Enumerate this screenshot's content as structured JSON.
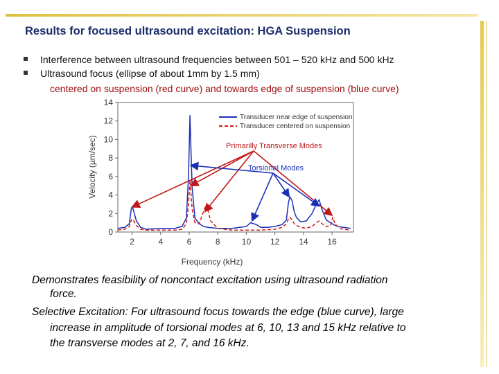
{
  "title": "Results for focused ultrasound excitation: HGA Suspension",
  "bullets": [
    "Interference between ultrasound frequencies between 501 – 520 kHz and 500 kHz",
    "Ultrasound focus (ellipse of about 1mm by 1.5 mm)"
  ],
  "bullet2_sub": "centered on suspension (red curve) and towards edge of suspension (blue curve)",
  "conclusion": {
    "line1": "Demonstrates feasibility of noncontact excitation using ultrasound radiation",
    "line2": "force.",
    "line3": "Selective Excitation: For ultrasound focus towards the edge (blue curve), large",
    "line4": "increase in amplitude of torsional modes at 6, 10, 13 and 15 kHz relative to",
    "line5": "the transverse modes at 2, 7, and 16 kHz."
  },
  "chart_data": {
    "type": "line",
    "xlabel": "Frequency (kHz)",
    "ylabel": "Velocity (µm/sec)",
    "xlim": [
      1,
      17.5
    ],
    "ylim": [
      0,
      14
    ],
    "xticks": [
      2,
      4,
      6,
      8,
      10,
      12,
      14,
      16
    ],
    "yticks": [
      0,
      2,
      4,
      6,
      8,
      10,
      12,
      14
    ],
    "legend_position": "top-right",
    "series": [
      {
        "name": "Transducer near edge of suspension",
        "color": "#1a2fb8",
        "dash": "solid",
        "x": [
          1.0,
          1.5,
          1.8,
          1.95,
          2.05,
          2.3,
          2.6,
          3.0,
          4.0,
          5.0,
          5.5,
          5.8,
          5.95,
          6.05,
          6.2,
          6.4,
          6.7,
          7.0,
          7.3,
          8.0,
          9.0,
          10.0,
          10.3,
          10.7,
          11.0,
          11.5,
          12.0,
          12.5,
          12.8,
          12.95,
          13.05,
          13.2,
          13.35,
          13.5,
          13.8,
          14.2,
          14.6,
          14.9,
          15.1,
          15.3,
          15.6,
          15.9,
          16.0,
          16.1,
          16.4,
          16.8,
          17.3
        ],
        "y": [
          0.4,
          0.5,
          0.9,
          2.6,
          2.6,
          1.2,
          0.5,
          0.3,
          0.4,
          0.4,
          0.6,
          1.5,
          6.0,
          12.6,
          4.8,
          1.5,
          0.9,
          0.6,
          0.5,
          0.4,
          0.4,
          0.6,
          1.0,
          0.8,
          0.5,
          0.5,
          0.6,
          0.8,
          1.3,
          3.2,
          3.8,
          3.4,
          2.2,
          1.6,
          1.1,
          1.2,
          2.0,
          3.0,
          3.5,
          2.4,
          1.3,
          1.0,
          0.9,
          0.8,
          0.6,
          0.5,
          0.4
        ]
      },
      {
        "name": "Transducer centered on suspension",
        "color": "#d01818",
        "dash": "dashed",
        "x": [
          1.0,
          1.5,
          1.8,
          1.95,
          2.05,
          2.3,
          2.6,
          3.0,
          4.0,
          5.0,
          5.5,
          5.8,
          5.95,
          6.05,
          6.2,
          6.4,
          6.7,
          7.0,
          7.2,
          7.5,
          8.0,
          9.0,
          10.0,
          11.0,
          12.0,
          12.5,
          12.8,
          12.95,
          13.05,
          13.2,
          13.4,
          13.8,
          14.2,
          14.6,
          14.9,
          15.1,
          15.3,
          15.6,
          15.9,
          16.05,
          16.2,
          16.5,
          16.8,
          17.3
        ],
        "y": [
          0.2,
          0.3,
          0.6,
          1.3,
          1.4,
          0.7,
          0.3,
          0.2,
          0.2,
          0.2,
          0.3,
          0.9,
          3.0,
          5.6,
          2.5,
          1.0,
          0.9,
          2.2,
          3.0,
          1.2,
          0.4,
          0.2,
          0.2,
          0.2,
          0.3,
          0.5,
          0.9,
          1.4,
          1.6,
          1.3,
          0.8,
          0.5,
          0.4,
          0.6,
          1.0,
          1.2,
          0.9,
          0.6,
          0.7,
          1.6,
          0.9,
          0.4,
          0.3,
          0.2
        ]
      }
    ],
    "annotations": [
      {
        "text": "Primarilly Transverse Modes",
        "color": "#c01818",
        "targets": [
          [
            2.0,
            2.7
          ],
          [
            6.1,
            5.0
          ],
          [
            7.1,
            2.2
          ],
          [
            16.0,
            1.8
          ]
        ]
      },
      {
        "text": "Torsional Modes",
        "color": "#1a2fb8",
        "targets": [
          [
            6.1,
            7.2
          ],
          [
            10.4,
            1.2
          ],
          [
            13.0,
            3.8
          ],
          [
            15.1,
            2.8
          ]
        ]
      }
    ]
  }
}
